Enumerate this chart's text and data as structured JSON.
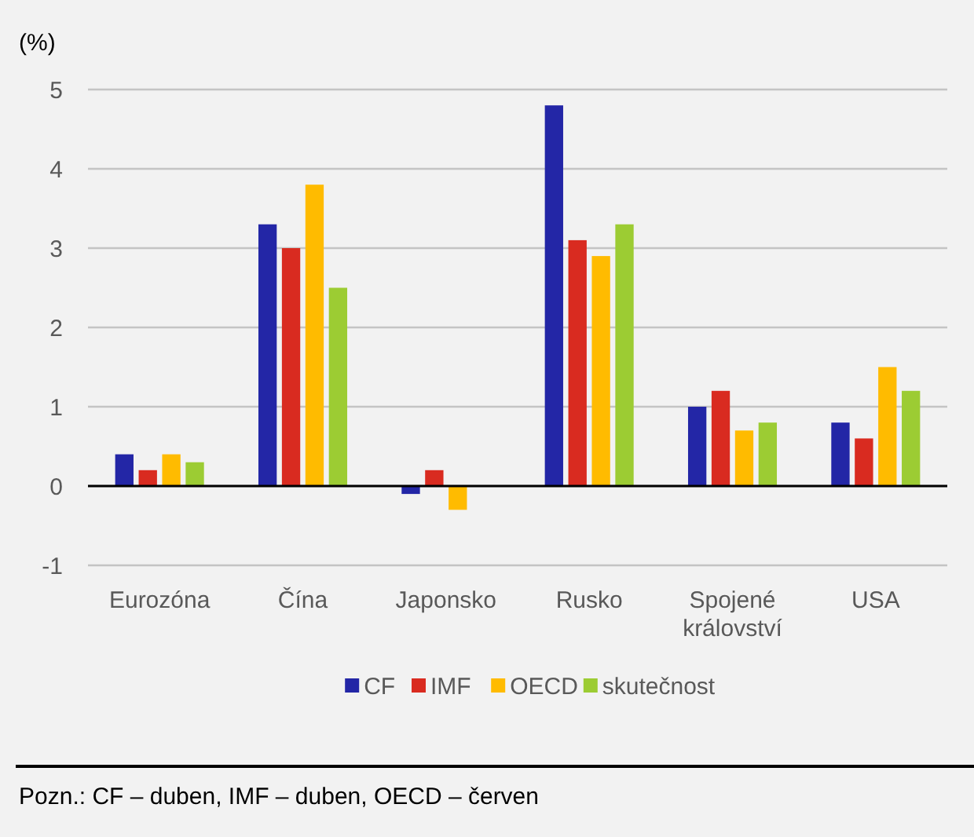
{
  "chart_data": {
    "type": "bar",
    "ylabel": "(%)",
    "categories": [
      "Eurozóna",
      "Čína",
      "Japonsko",
      "Rusko",
      "Spojené království",
      "USA"
    ],
    "series": [
      {
        "name": "CF",
        "color": "#2326a6",
        "values": [
          0.4,
          3.3,
          -0.1,
          4.8,
          1.0,
          0.8
        ]
      },
      {
        "name": "IMF",
        "color": "#d92b20",
        "values": [
          0.2,
          3.0,
          0.2,
          3.1,
          1.2,
          0.6
        ]
      },
      {
        "name": "OECD",
        "color": "#ffbb00",
        "values": [
          0.4,
          3.8,
          -0.3,
          2.9,
          0.7,
          1.5
        ]
      },
      {
        "name": "skutečnost",
        "color": "#9ccc33",
        "values": [
          0.3,
          2.5,
          null,
          3.3,
          0.8,
          1.2
        ]
      }
    ],
    "ylim": [
      -1,
      5
    ],
    "yticks": [
      -1,
      0,
      1,
      2,
      3,
      4,
      5
    ],
    "grid": "y",
    "legend": "bottom",
    "annotations": [
      "Pozn.: CF – duben, IMF – duben, OECD – červen"
    ]
  }
}
